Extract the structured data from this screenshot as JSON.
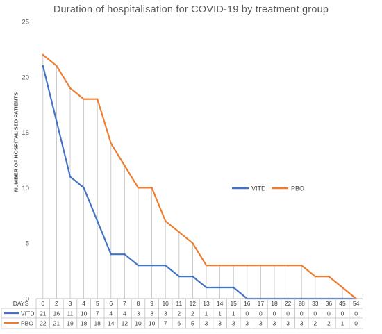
{
  "chart_data": {
    "type": "line",
    "title": "Duration of hospitalisation for COVID-19 by treatment group",
    "ylabel": "NUMBER OF HOSPITALISED PATIENTS",
    "xlabel": "DAYS",
    "categories": [
      "0",
      "2",
      "3",
      "4",
      "5",
      "6",
      "7",
      "8",
      "9",
      "10",
      "11",
      "12",
      "13",
      "14",
      "15",
      "16",
      "17",
      "18",
      "22",
      "28",
      "33",
      "36",
      "45",
      "54"
    ],
    "ylim": [
      0,
      25
    ],
    "yticks": [
      0,
      5,
      10,
      15,
      20,
      25
    ],
    "grid": "vertical drop lines",
    "legend_position": "right-center",
    "data_table": true,
    "series": [
      {
        "name": "VITD",
        "color": "#4472C4",
        "values": [
          21,
          16,
          11,
          10,
          7,
          4,
          4,
          3,
          3,
          3,
          2,
          2,
          1,
          1,
          1,
          0,
          0,
          0,
          0,
          0,
          0,
          0,
          0,
          0
        ]
      },
      {
        "name": "PBO",
        "color": "#ED7D31",
        "values": [
          22,
          21,
          19,
          18,
          18,
          14,
          12,
          10,
          10,
          7,
          6,
          5,
          3,
          3,
          3,
          3,
          3,
          3,
          3,
          3,
          2,
          2,
          1,
          0
        ]
      }
    ]
  }
}
